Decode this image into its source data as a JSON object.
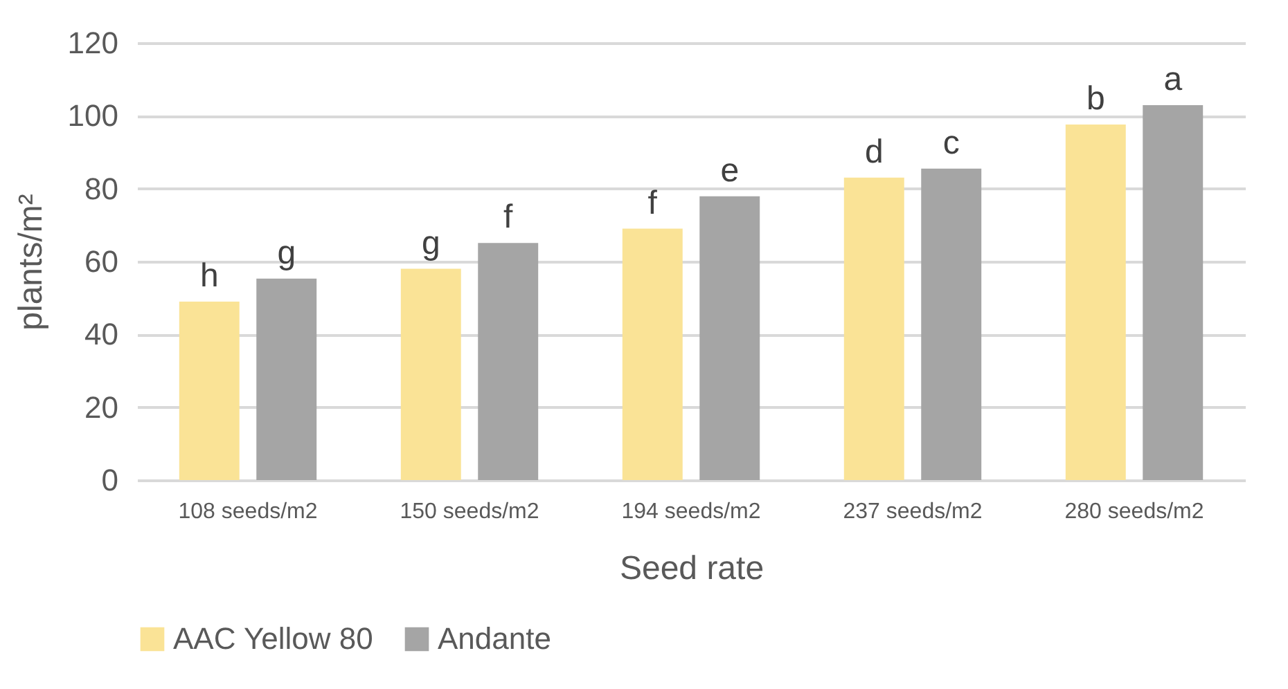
{
  "chart_data": {
    "type": "bar",
    "xlabel": "Seed rate",
    "ylabel": "plants/m²",
    "categories": [
      "108 seeds/m2",
      "150 seeds/m2",
      "194 seeds/m2",
      "237 seeds/m2",
      "280 seeds/m2"
    ],
    "series": [
      {
        "name": "AAC Yellow 80",
        "color": "#fae396",
        "values": [
          49,
          58,
          69,
          83,
          97.6
        ],
        "value_labels": [
          "h",
          "g",
          "f",
          "d",
          "b"
        ]
      },
      {
        "name": "Andante",
        "color": "#a5a5a5",
        "values": [
          55.3,
          65.1,
          77.9,
          85.5,
          102.9
        ],
        "value_labels": [
          "g",
          "f",
          "e",
          "c",
          "a"
        ]
      }
    ],
    "ylim": [
      0,
      120
    ],
    "yticks": [
      0,
      20,
      40,
      60,
      80,
      100,
      120
    ],
    "grid": "y",
    "legend": "bottom"
  }
}
